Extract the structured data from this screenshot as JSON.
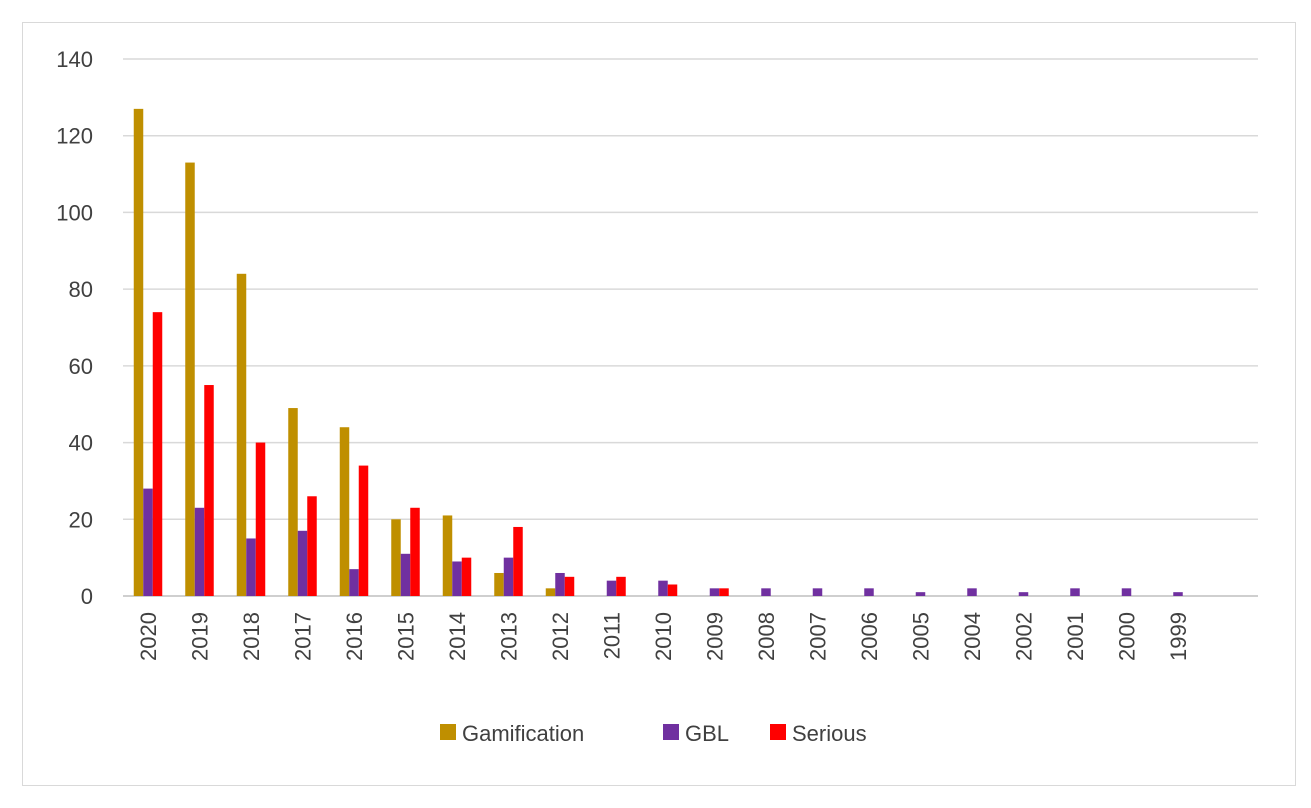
{
  "chart_data": {
    "type": "bar",
    "title": "",
    "xlabel": "",
    "ylabel": "",
    "categories": [
      "2020",
      "2019",
      "2018",
      "2017",
      "2016",
      "2015",
      "2014",
      "2013",
      "2012",
      "2011",
      "2010",
      "2009",
      "2008",
      "2007",
      "2006",
      "2005",
      "2004",
      "2002",
      "2001",
      "2000",
      "1999"
    ],
    "ylim": [
      0,
      140
    ],
    "yticks": [
      "0",
      "20",
      "40",
      "60",
      "80",
      "100",
      "120",
      "140"
    ],
    "grid": true,
    "legend_position": "bottom",
    "series": [
      {
        "name": "Gamification",
        "color": "#bf8f00",
        "values": [
          127,
          113,
          84,
          49,
          44,
          20,
          21,
          6,
          2,
          0,
          0,
          0,
          0,
          0,
          0,
          0,
          0,
          0,
          0,
          0,
          0
        ]
      },
      {
        "name": "GBL",
        "color": "#7030a0",
        "values": [
          28,
          23,
          15,
          17,
          7,
          11,
          9,
          10,
          6,
          4,
          4,
          2,
          2,
          2,
          2,
          1,
          2,
          1,
          2,
          2,
          1
        ]
      },
      {
        "name": "Serious",
        "color": "#ff0000",
        "values": [
          74,
          55,
          40,
          26,
          34,
          23,
          10,
          18,
          5,
          5,
          3,
          2,
          0,
          0,
          0,
          0,
          0,
          0,
          0,
          0,
          0
        ]
      }
    ]
  }
}
